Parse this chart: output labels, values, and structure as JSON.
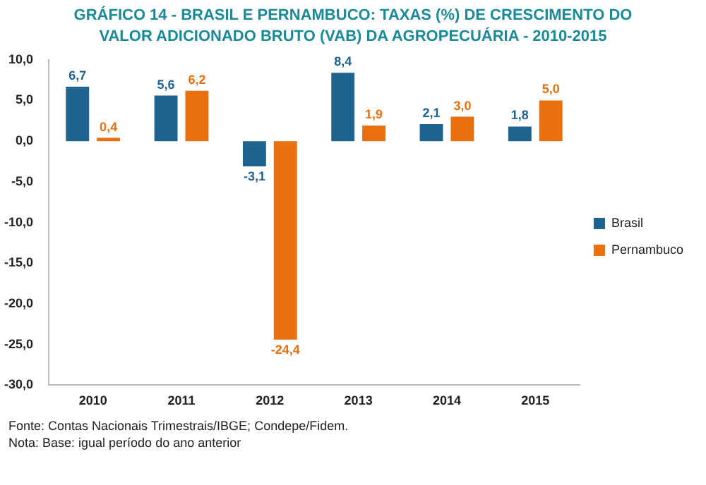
{
  "chart_data": {
    "type": "bar",
    "title": "GRÁFICO 14 - BRASIL E PERNAMBUCO: TAXAS (%) DE CRESCIMENTO DO VALOR ADICIONADO BRUTO (VAB) DA AGROPECUÁRIA - 2010-2015",
    "categories": [
      "2010",
      "2011",
      "2012",
      "2013",
      "2014",
      "2015"
    ],
    "series": [
      {
        "name": "Brasil",
        "color": "#1f6391",
        "values": [
          6.7,
          5.6,
          -3.1,
          8.4,
          2.1,
          1.8
        ],
        "value_labels": [
          "6,7",
          "5,6",
          "-3,1",
          "8,4",
          "2,1",
          "1,8"
        ]
      },
      {
        "name": "Pernambuco",
        "color": "#e8700e",
        "values": [
          0.4,
          6.2,
          -24.4,
          1.9,
          3.0,
          5.0
        ],
        "value_labels": [
          "0,4",
          "6,2",
          "-24,4",
          "1,9",
          "3,0",
          "5,0"
        ]
      }
    ],
    "ylim": [
      -30,
      10
    ],
    "yticks": [
      {
        "value": -30,
        "label": "-30,0"
      },
      {
        "value": -25,
        "label": "-25,0"
      },
      {
        "value": -20,
        "label": "-20,0"
      },
      {
        "value": -15,
        "label": "-15,0"
      },
      {
        "value": -10,
        "label": "-10,0"
      },
      {
        "value": -5,
        "label": "-5,0"
      },
      {
        "value": 0,
        "label": "0,0"
      },
      {
        "value": 5,
        "label": "5,0"
      },
      {
        "value": 10,
        "label": "10,0"
      }
    ],
    "grid": false,
    "legend": "right",
    "annotations": [
      "Fonte: Contas Nacionais Trimestrais/IBGE; Condepe/Fidem.",
      "Nota: Base: igual período do ano anterior"
    ]
  }
}
